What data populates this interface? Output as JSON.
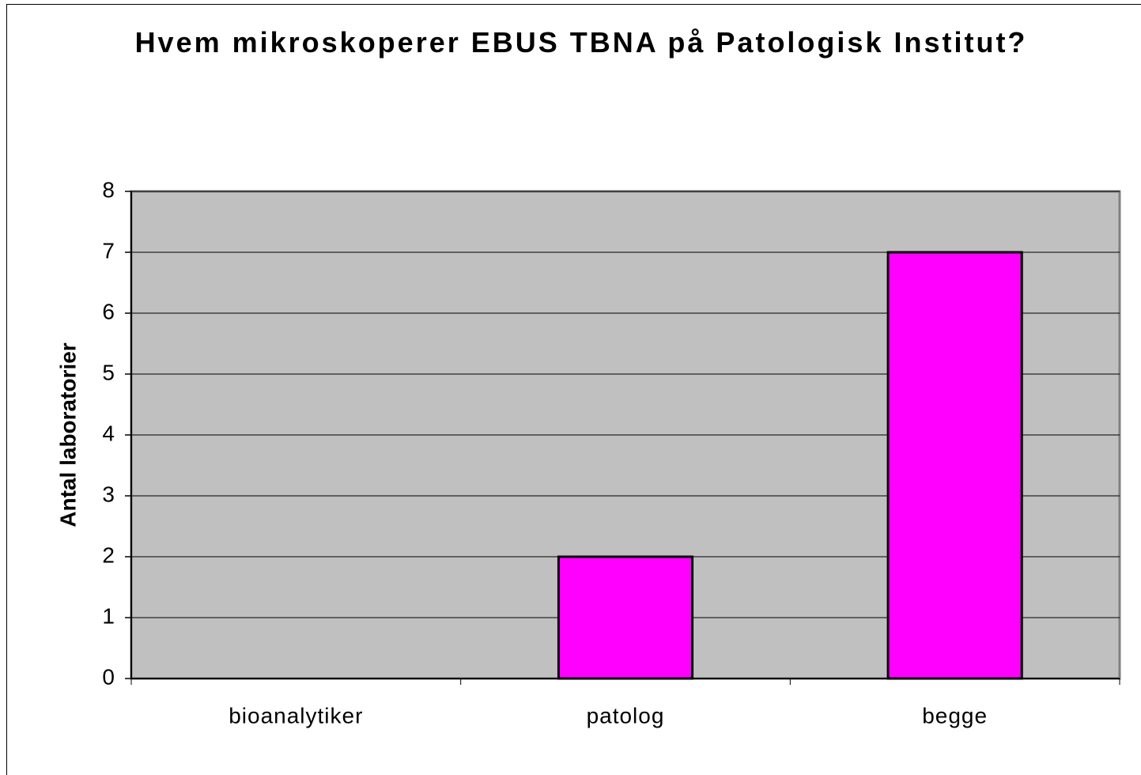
{
  "chart_data": {
    "type": "bar",
    "title": "Hvem mikroskoperer EBUS TBNA på Patologisk Institut?",
    "y_label": "Antal laboratorier",
    "categories": [
      "bioanalytiker",
      "patolog",
      "begge"
    ],
    "values": [
      0,
      2,
      7
    ],
    "color": "#ff00ff",
    "ylim": [
      0,
      8
    ],
    "yticks": [
      0,
      1,
      2,
      3,
      4,
      5,
      6,
      7,
      8
    ],
    "grid": true
  }
}
